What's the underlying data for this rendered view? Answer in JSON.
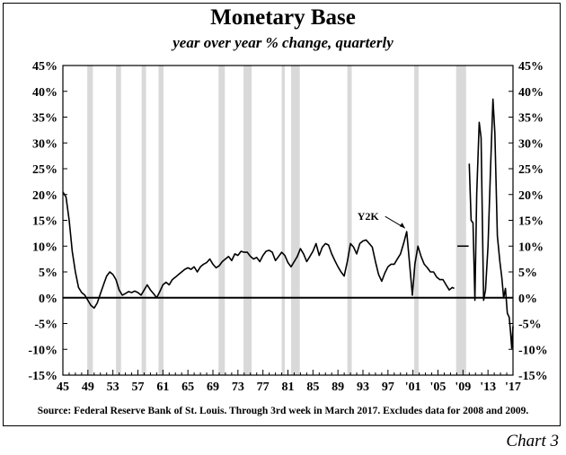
{
  "chart_data": {
    "type": "line",
    "title": "Monetary Base",
    "subtitle": "year over year % change, quarterly",
    "source": "Source: Federal Reserve Bank of St. Louis. Through 3rd week in March 2017. Excludes data for 2008 and 2009.",
    "label": "Chart 3",
    "annotation": {
      "text": "Y2K",
      "x": 2000.0,
      "y": 12.8
    },
    "y_ticks": [
      "45%",
      "40%",
      "35%",
      "30%",
      "25%",
      "20%",
      "15%",
      "10%",
      "5%",
      "0%",
      "-5%",
      "-10%",
      "-15%"
    ],
    "y_tick_values": [
      45,
      40,
      35,
      30,
      25,
      20,
      15,
      10,
      5,
      0,
      -5,
      -10,
      -15
    ],
    "x_ticks": [
      "45",
      "49",
      "53",
      "57",
      "61",
      "65",
      "69",
      "73",
      "77",
      "81",
      "85",
      "89",
      "93",
      "97",
      "'01",
      "'05",
      "'09",
      "'13",
      "'17"
    ],
    "x_tick_values": [
      1945,
      1949,
      1953,
      1957,
      1961,
      1965,
      1969,
      1973,
      1977,
      1981,
      1985,
      1989,
      1993,
      1997,
      2001,
      2005,
      2009,
      2013,
      2017
    ],
    "xlim": [
      1945,
      2017
    ],
    "ylim": [
      -15,
      45
    ],
    "grid": false,
    "zero_line": true,
    "recessions": [
      [
        1948.9,
        1949.8
      ],
      [
        1953.5,
        1954.3
      ],
      [
        1957.6,
        1958.3
      ],
      [
        1960.3,
        1961.1
      ],
      [
        1969.9,
        1970.9
      ],
      [
        1973.9,
        1975.2
      ],
      [
        1980.0,
        1980.5
      ],
      [
        1981.5,
        1982.9
      ],
      [
        1990.5,
        1991.2
      ],
      [
        2001.2,
        2001.9
      ],
      [
        2007.9,
        2009.5
      ]
    ],
    "series": [
      {
        "values": [
          [
            1945.0,
            20.5
          ],
          [
            1945.5,
            19.5
          ],
          [
            1946.0,
            15.0
          ],
          [
            1946.5,
            9.0
          ],
          [
            1947.0,
            5.0
          ],
          [
            1947.5,
            2.0
          ],
          [
            1948.0,
            1.0
          ],
          [
            1948.5,
            0.5
          ],
          [
            1949.0,
            -0.5
          ],
          [
            1949.5,
            -1.5
          ],
          [
            1950.0,
            -2.0
          ],
          [
            1950.5,
            -1.0
          ],
          [
            1951.0,
            0.8
          ],
          [
            1951.5,
            2.5
          ],
          [
            1952.0,
            4.2
          ],
          [
            1952.5,
            5.0
          ],
          [
            1953.0,
            4.5
          ],
          [
            1953.5,
            3.5
          ],
          [
            1954.0,
            1.5
          ],
          [
            1954.5,
            0.5
          ],
          [
            1955.0,
            0.8
          ],
          [
            1955.5,
            1.2
          ],
          [
            1956.0,
            1.0
          ],
          [
            1956.5,
            1.3
          ],
          [
            1957.0,
            1.0
          ],
          [
            1957.5,
            0.5
          ],
          [
            1958.0,
            1.5
          ],
          [
            1958.5,
            2.5
          ],
          [
            1959.0,
            1.5
          ],
          [
            1959.5,
            0.8
          ],
          [
            1960.0,
            0.0
          ],
          [
            1960.5,
            1.2
          ],
          [
            1961.0,
            2.5
          ],
          [
            1961.5,
            3.0
          ],
          [
            1962.0,
            2.5
          ],
          [
            1962.5,
            3.5
          ],
          [
            1963.0,
            4.0
          ],
          [
            1963.5,
            4.5
          ],
          [
            1964.0,
            5.0
          ],
          [
            1964.5,
            5.5
          ],
          [
            1965.0,
            5.8
          ],
          [
            1965.5,
            5.5
          ],
          [
            1966.0,
            6.0
          ],
          [
            1966.5,
            5.0
          ],
          [
            1967.0,
            6.0
          ],
          [
            1967.5,
            6.5
          ],
          [
            1968.0,
            6.8
          ],
          [
            1968.5,
            7.5
          ],
          [
            1969.0,
            6.5
          ],
          [
            1969.5,
            5.8
          ],
          [
            1970.0,
            6.2
          ],
          [
            1970.5,
            7.0
          ],
          [
            1971.0,
            7.5
          ],
          [
            1971.5,
            8.0
          ],
          [
            1972.0,
            7.2
          ],
          [
            1972.5,
            8.5
          ],
          [
            1973.0,
            8.2
          ],
          [
            1973.5,
            9.0
          ],
          [
            1974.0,
            8.8
          ],
          [
            1974.5,
            8.8
          ],
          [
            1975.0,
            8.0
          ],
          [
            1975.5,
            7.5
          ],
          [
            1976.0,
            7.8
          ],
          [
            1976.5,
            7.0
          ],
          [
            1977.0,
            8.2
          ],
          [
            1977.5,
            9.0
          ],
          [
            1978.0,
            9.2
          ],
          [
            1978.5,
            8.8
          ],
          [
            1979.0,
            7.2
          ],
          [
            1979.5,
            8.0
          ],
          [
            1980.0,
            8.8
          ],
          [
            1980.5,
            8.2
          ],
          [
            1981.0,
            6.8
          ],
          [
            1981.5,
            6.0
          ],
          [
            1982.0,
            7.0
          ],
          [
            1982.5,
            8.0
          ],
          [
            1983.0,
            9.5
          ],
          [
            1983.5,
            8.5
          ],
          [
            1984.0,
            7.0
          ],
          [
            1984.5,
            8.0
          ],
          [
            1985.0,
            9.0
          ],
          [
            1985.5,
            10.5
          ],
          [
            1986.0,
            8.2
          ],
          [
            1986.5,
            9.8
          ],
          [
            1987.0,
            10.5
          ],
          [
            1987.5,
            10.2
          ],
          [
            1988.0,
            8.5
          ],
          [
            1988.5,
            7.2
          ],
          [
            1989.0,
            6.0
          ],
          [
            1989.5,
            5.0
          ],
          [
            1990.0,
            4.2
          ],
          [
            1990.5,
            7.0
          ],
          [
            1991.0,
            10.5
          ],
          [
            1991.5,
            9.8
          ],
          [
            1992.0,
            8.5
          ],
          [
            1992.5,
            10.5
          ],
          [
            1993.0,
            11.0
          ],
          [
            1993.5,
            11.2
          ],
          [
            1994.0,
            10.5
          ],
          [
            1994.5,
            9.8
          ],
          [
            1995.0,
            7.0
          ],
          [
            1995.5,
            4.5
          ],
          [
            1996.0,
            3.2
          ],
          [
            1996.5,
            4.8
          ],
          [
            1997.0,
            6.0
          ],
          [
            1997.5,
            6.5
          ],
          [
            1998.0,
            6.5
          ],
          [
            1998.5,
            7.5
          ],
          [
            1999.0,
            8.5
          ],
          [
            1999.5,
            10.5
          ],
          [
            2000.0,
            12.8
          ],
          [
            2000.5,
            6.0
          ],
          [
            2000.9,
            0.5
          ],
          [
            2001.3,
            6.5
          ],
          [
            2001.8,
            10.0
          ],
          [
            2002.3,
            8.0
          ],
          [
            2002.8,
            6.5
          ],
          [
            2003.3,
            5.8
          ],
          [
            2003.8,
            5.0
          ],
          [
            2004.3,
            5.0
          ],
          [
            2004.8,
            4.0
          ],
          [
            2005.3,
            3.5
          ],
          [
            2005.8,
            3.5
          ],
          [
            2006.3,
            2.5
          ],
          [
            2006.8,
            1.5
          ],
          [
            2007.3,
            2.0
          ],
          [
            2007.6,
            1.8
          ]
        ]
      },
      {
        "values": [
          [
            2010.0,
            26.0
          ],
          [
            2010.3,
            15.0
          ],
          [
            2010.6,
            14.5
          ],
          [
            2010.9,
            -0.5
          ],
          [
            2011.2,
            20.0
          ],
          [
            2011.6,
            34.0
          ],
          [
            2011.9,
            31.0
          ],
          [
            2012.3,
            -0.5
          ],
          [
            2012.6,
            1.5
          ],
          [
            2013.0,
            10.0
          ],
          [
            2013.4,
            25.0
          ],
          [
            2013.8,
            38.5
          ],
          [
            2014.1,
            32.0
          ],
          [
            2014.5,
            12.0
          ],
          [
            2014.9,
            7.0
          ],
          [
            2015.2,
            4.0
          ],
          [
            2015.5,
            0.0
          ],
          [
            2015.8,
            1.8
          ],
          [
            2016.1,
            -3.0
          ],
          [
            2016.4,
            -3.8
          ],
          [
            2016.6,
            -6.5
          ],
          [
            2016.8,
            -9.8
          ],
          [
            2017.0,
            -5.5
          ]
        ]
      }
    ],
    "marker_2008_2009": {
      "x_start": 2008.1,
      "x_end": 2009.9,
      "y": 10.0
    }
  }
}
